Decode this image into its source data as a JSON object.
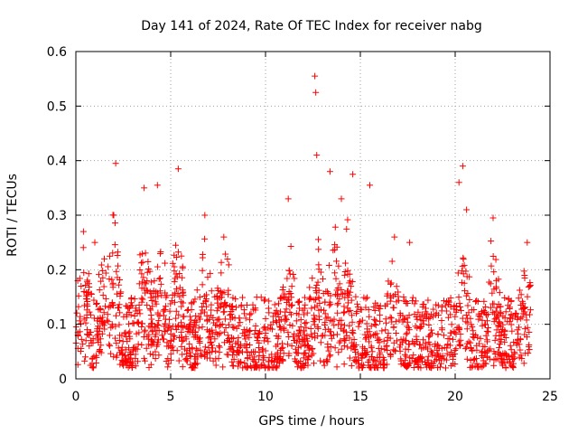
{
  "chart_data": {
    "type": "scatter",
    "title": "Day 141 of 2024, Rate Of TEC Index for receiver nabg",
    "xlabel": "GPS time / hours",
    "ylabel": "ROTI / TECUs",
    "xlim": [
      0,
      25
    ],
    "ylim": [
      0,
      0.6
    ],
    "x_ticks": [
      0,
      5,
      10,
      15,
      20,
      25
    ],
    "y_ticks": [
      0,
      0.1,
      0.2,
      0.3,
      0.4,
      0.5,
      0.6
    ],
    "grid": true,
    "marker": "+",
    "color": "#ff0000",
    "series": [
      {
        "name": "ROTI",
        "notes": "dense noise band ~0.02-0.15 across 0-24h; representative highlighted peaks listed",
        "x": [
          0.1,
          0.4,
          1.0,
          1.5,
          2.0,
          2.1,
          3.6,
          4.3,
          5.4,
          6.8,
          7.8,
          11.2,
          12.6,
          12.65,
          12.7,
          13.4,
          14.0,
          14.6,
          15.5,
          16.8,
          17.6,
          20.2,
          20.4,
          20.6,
          22.0,
          23.8
        ],
        "y": [
          0.18,
          0.27,
          0.25,
          0.22,
          0.3,
          0.395,
          0.35,
          0.355,
          0.385,
          0.3,
          0.26,
          0.33,
          0.555,
          0.525,
          0.41,
          0.38,
          0.33,
          0.375,
          0.355,
          0.26,
          0.25,
          0.36,
          0.39,
          0.31,
          0.295,
          0.25
        ]
      }
    ]
  }
}
